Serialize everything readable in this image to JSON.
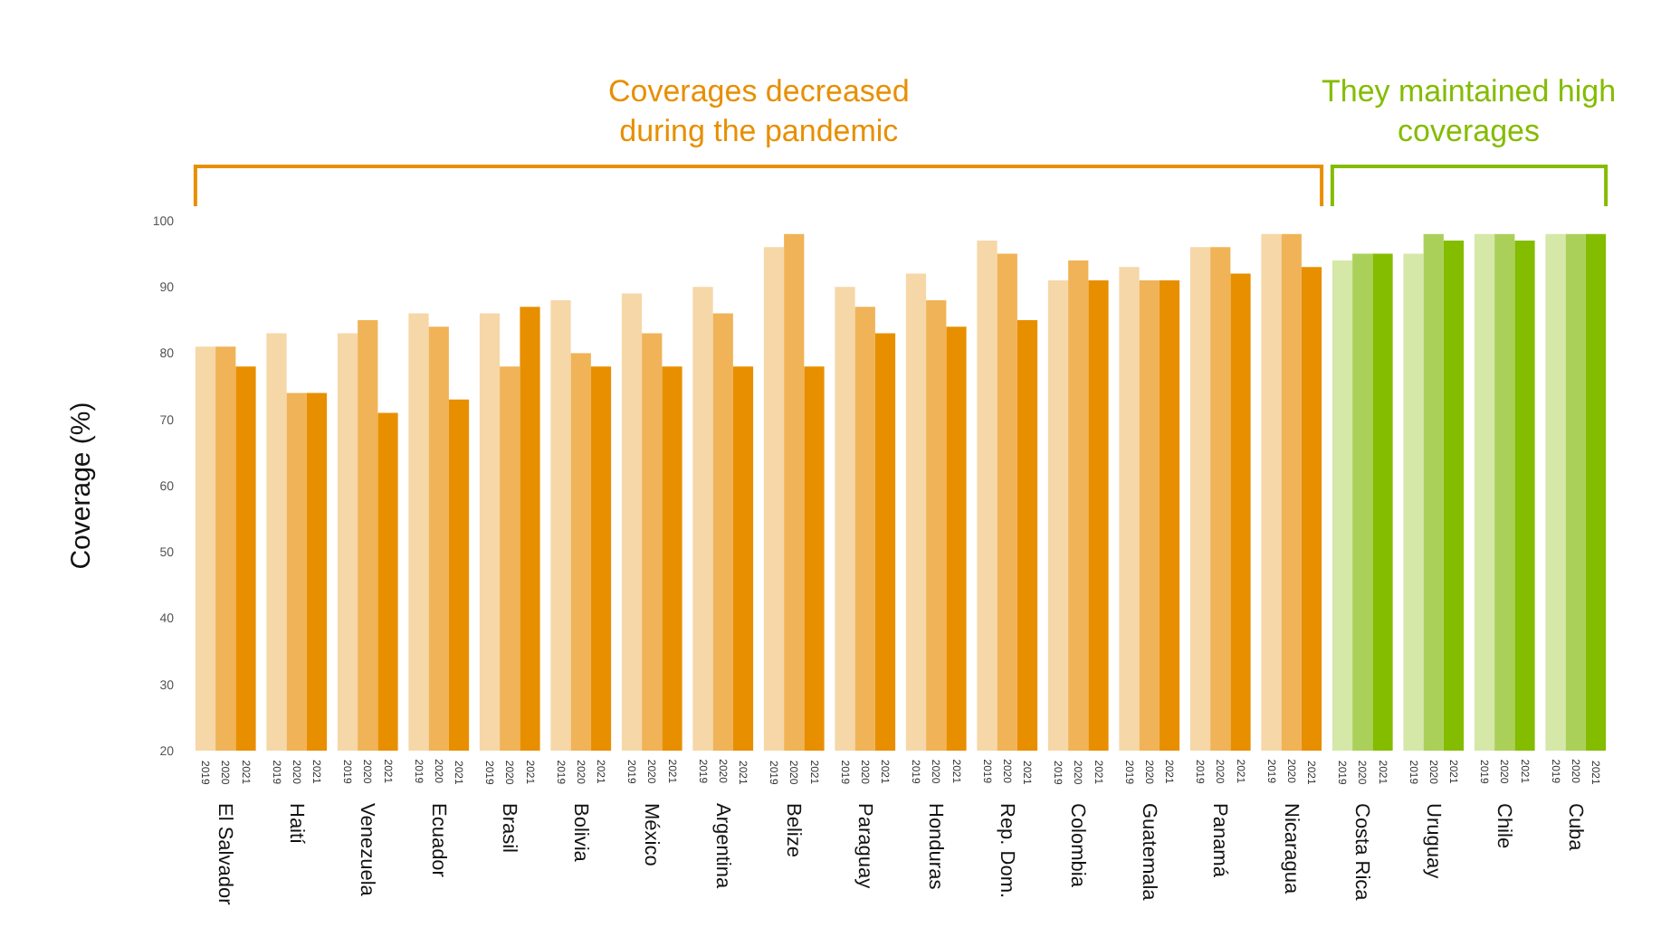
{
  "chart_data": {
    "type": "bar",
    "ylabel": "Coverage (%)",
    "annotations": [
      "Coverages decreased during the pandemic",
      "They maintained high coverages"
    ],
    "categories": [
      "El Salvador",
      "Haití",
      "Venezuela",
      "Ecuador",
      "Brasil",
      "Bolivia",
      "México",
      "Argentina",
      "Belize",
      "Paraguay",
      "Honduras",
      "Rep. Dom.",
      "Colombia",
      "Guatemala",
      "Panamá",
      "Nicaragua",
      "Costa Rica",
      "Uruguay",
      "Chile",
      "Cuba"
    ],
    "series": [
      {
        "name": "2019",
        "colors": [
          "#f6d7a7",
          "#f6d7a7",
          "#f6d7a7",
          "#f6d7a7",
          "#f6d7a7",
          "#f6d7a7",
          "#f6d7a7",
          "#f6d7a7",
          "#f6d7a7",
          "#f6d7a7",
          "#f6d7a7",
          "#f6d7a7",
          "#f6d7a7",
          "#f6d7a7",
          "#f6d7a7",
          "#f6d7a7",
          "#d5e8a8",
          "#d5e8a8",
          "#d5e8a8",
          "#d5e8a8"
        ],
        "values": [
          81,
          83,
          83,
          86,
          86,
          88,
          89,
          90,
          96,
          90,
          92,
          97,
          91,
          93,
          96,
          98,
          94,
          95,
          98,
          98
        ]
      },
      {
        "name": "2020",
        "colors": [
          "#f0b357",
          "#f0b357",
          "#f0b357",
          "#f0b357",
          "#f0b357",
          "#f0b357",
          "#f0b357",
          "#f0b357",
          "#f0b357",
          "#f0b357",
          "#f0b357",
          "#f0b357",
          "#f0b357",
          "#f0b357",
          "#f0b357",
          "#f0b357",
          "#abd05a",
          "#abd05a",
          "#abd05a",
          "#abd05a"
        ],
        "values": [
          81,
          74,
          85,
          84,
          78,
          80,
          83,
          86,
          98,
          87,
          88,
          95,
          94,
          91,
          96,
          98,
          95,
          98,
          98,
          98
        ]
      },
      {
        "name": "2021",
        "colors": [
          "#e88f00",
          "#e88f00",
          "#e88f00",
          "#e88f00",
          "#e88f00",
          "#e88f00",
          "#e88f00",
          "#e88f00",
          "#e88f00",
          "#e88f00",
          "#e88f00",
          "#e88f00",
          "#e88f00",
          "#e88f00",
          "#e88f00",
          "#e88f00",
          "#84bc00",
          "#84bc00",
          "#84bc00",
          "#84bc00"
        ],
        "values": [
          78,
          74,
          71,
          73,
          87,
          78,
          78,
          78,
          78,
          83,
          84,
          85,
          91,
          91,
          92,
          93,
          95,
          97,
          97,
          98
        ]
      }
    ],
    "ylim": [
      20,
      100
    ],
    "yticks": [
      20,
      30,
      40,
      50,
      60,
      70,
      80,
      90,
      100
    ],
    "grid": false,
    "legend": false
  }
}
